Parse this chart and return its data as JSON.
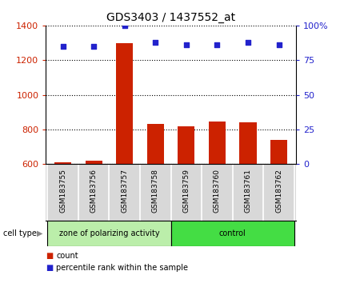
{
  "title": "GDS3403 / 1437552_at",
  "samples": [
    "GSM183755",
    "GSM183756",
    "GSM183757",
    "GSM183758",
    "GSM183759",
    "GSM183760",
    "GSM183761",
    "GSM183762"
  ],
  "bar_values": [
    612,
    622,
    1300,
    832,
    820,
    848,
    842,
    740
  ],
  "percentile_values": [
    85,
    85,
    100,
    88,
    86,
    86,
    88,
    86
  ],
  "bar_color": "#cc2200",
  "percentile_color": "#2222cc",
  "ylim_left": [
    600,
    1400
  ],
  "ylim_right": [
    0,
    100
  ],
  "yticks_left": [
    600,
    800,
    1000,
    1200,
    1400
  ],
  "yticks_right": [
    0,
    25,
    50,
    75,
    100
  ],
  "group1_n": 4,
  "group2_n": 4,
  "group1_label": "zone of polarizing activity",
  "group2_label": "control",
  "group1_color": "#bbeeaa",
  "group2_color": "#44dd44",
  "cell_type_label": "cell type",
  "legend_count_label": "count",
  "legend_percentile_label": "percentile rank within the sample",
  "background_color": "#ffffff",
  "plot_bg_color": "#ffffff",
  "label_bg_color": "#d8d8d8",
  "grid_color": "#000000",
  "title_fontsize": 10,
  "tick_fontsize": 8,
  "label_fontsize": 7,
  "axis_label_color_left": "#cc2200",
  "axis_label_color_right": "#2222cc",
  "spine_color": "#000000"
}
